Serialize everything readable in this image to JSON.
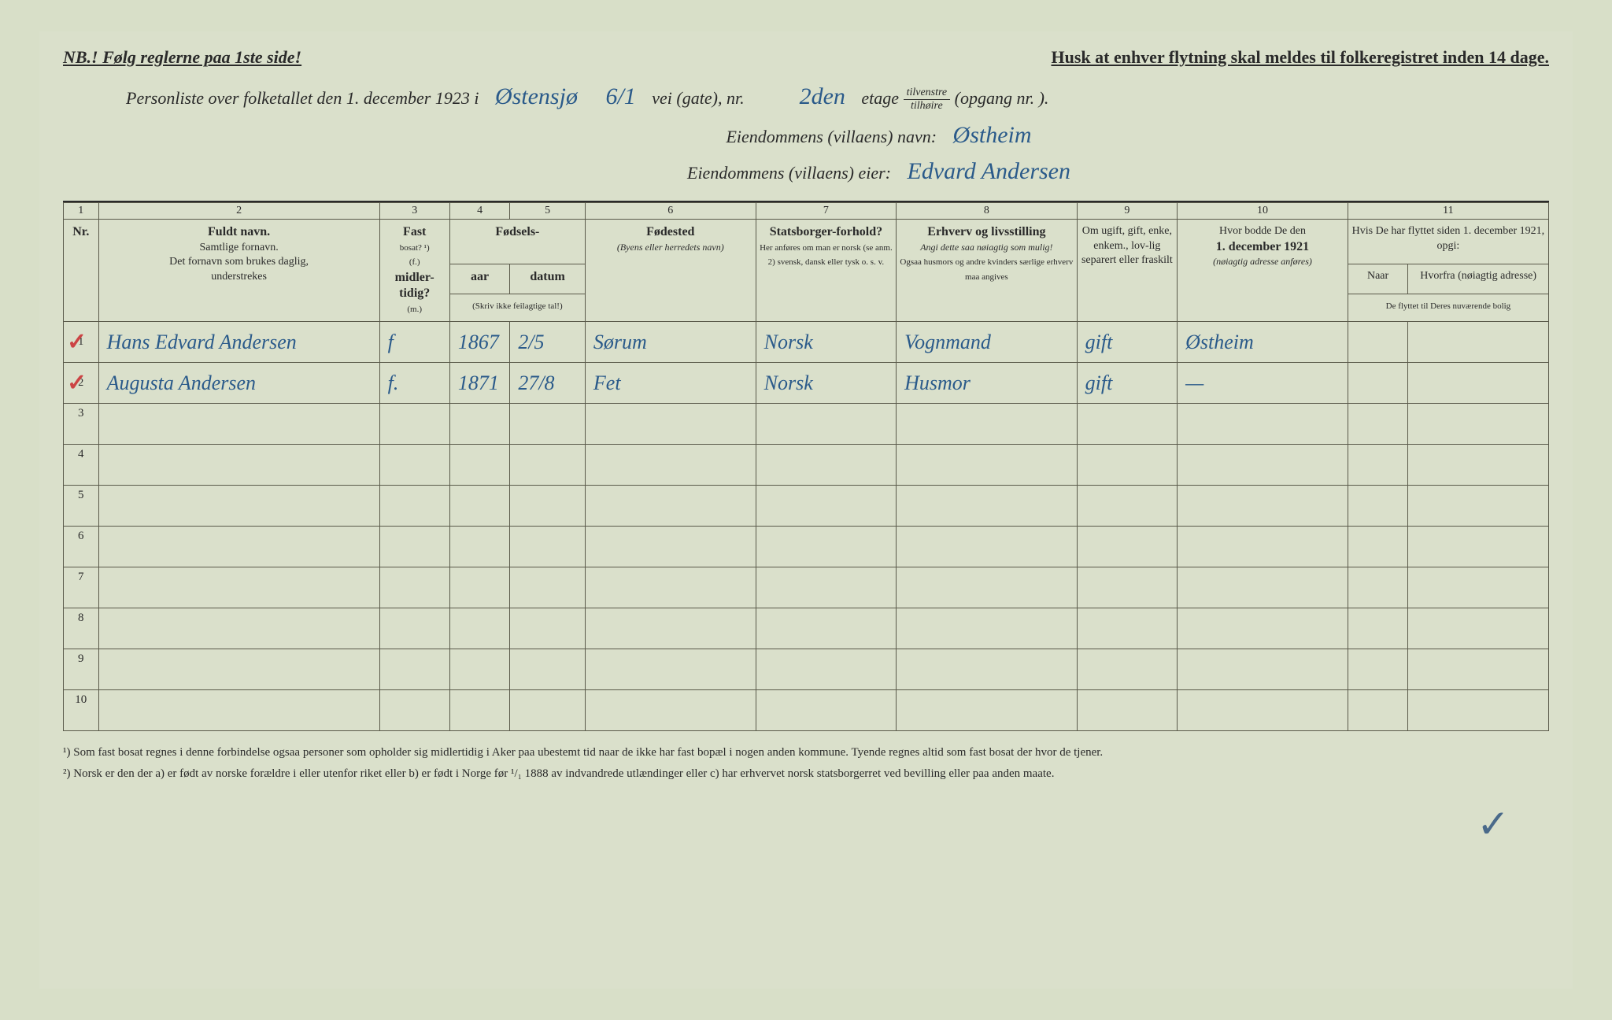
{
  "topbar": {
    "left": "NB.! Følg reglerne paa 1ste side!",
    "right": "Husk at enhver flytning skal meldes til folkeregistret inden 14 dage."
  },
  "header": {
    "line1_pre": "Personliste over folketallet den 1. december 1923 i",
    "street_hand": "Østensjø",
    "street_num": "6/1",
    "line1_mid": "vei (gate), nr.",
    "etage_hand": "2den",
    "line1_etage": "etage",
    "frac_top": "tilvenstre",
    "frac_bot": "tilhøire",
    "line1_end": "(opgang nr.      ).",
    "line2_label": "Eiendommens (villaens) navn:",
    "line2_hand": "Østheim",
    "line3_label": "Eiendommens (villaens) eier:",
    "line3_hand": "Edvard Andersen"
  },
  "colnums": [
    "1",
    "2",
    "3",
    "4",
    "5",
    "6",
    "7",
    "8",
    "9",
    "10",
    "11"
  ],
  "headers": {
    "nr": "Nr.",
    "name_main": "Fuldt navn.",
    "name_sub1": "Samtlige fornavn.",
    "name_sub2": "Det fornavn som brukes daglig,",
    "name_sub3": "understrekes",
    "bosat_main": "Fast",
    "bosat_sub1": "bosat? ¹)",
    "bosat_sub2": "(f.)",
    "bosat_main2": "midler-",
    "bosat_main3": "tidig?",
    "bosat_sub3": "(m.)",
    "fodsels": "Fødsels-",
    "aar": "aar",
    "datum": "datum",
    "aar_sub": "(Skriv ikke feilagtige tal!)",
    "fodested": "Fødested",
    "fodested_sub": "(Byens eller herredets navn)",
    "stats_main": "Statsborger-forhold?",
    "stats_sub": "Her anføres om man er norsk (se anm. 2) svensk, dansk eller tysk o. s. v.",
    "erhverv_main": "Erhverv og livsstilling",
    "erhverv_sub1": "Angi dette saa nøiagtig som mulig!",
    "erhverv_sub2": "Ogsaa husmors og andre kvinders særlige erhverv maa angives",
    "ugift": "Om ugift, gift, enke, enkem., lov-lig separert eller fraskilt",
    "bodde_main": "Hvor bodde De den",
    "bodde_date": "1. december 1921",
    "bodde_sub": "(nøiagtig adresse anføres)",
    "flyttet_main": "Hvis De har flyttet siden 1. december 1921, opgi:",
    "naar": "Naar",
    "hvorfra": "Hvorfra (nøiagtig adresse)",
    "flyttet_sub": "De flyttet til Deres nuværende bolig"
  },
  "rows": [
    {
      "nr": "1",
      "name": "Hans Edvard Andersen",
      "bosat": "f",
      "aar": "1867",
      "datum": "2/5",
      "fodested": "Sørum",
      "stats": "Norsk",
      "erhverv": "Vognmand",
      "ugift": "gift",
      "bodde": "Østheim",
      "naar": "",
      "hvorfra": ""
    },
    {
      "nr": "2",
      "name": "Augusta Andersen",
      "bosat": "f.",
      "aar": "1871",
      "datum": "27/8",
      "fodested": "Fet",
      "stats": "Norsk",
      "erhverv": "Husmor",
      "ugift": "gift",
      "bodde": "—",
      "naar": "",
      "hvorfra": ""
    }
  ],
  "empty_rows": [
    "3",
    "4",
    "5",
    "6",
    "7",
    "8",
    "9",
    "10"
  ],
  "footnotes": {
    "f1": "¹) Som fast bosat regnes i denne forbindelse ogsaa personer som opholder sig midlertidig i Aker paa ubestemt tid naar de ikke har fast bopæl i nogen anden kommune. Tyende regnes altid som fast bosat der hvor de tjener.",
    "f2": "²) Norsk er den der a) er født av norske forældre i eller utenfor riket eller b) er født i Norge før ¹/₁ 1888 av indvandrede utlændinger eller c) har erhvervet norsk statsborgerret ved bevilling eller paa anden maate."
  },
  "check": "✓"
}
